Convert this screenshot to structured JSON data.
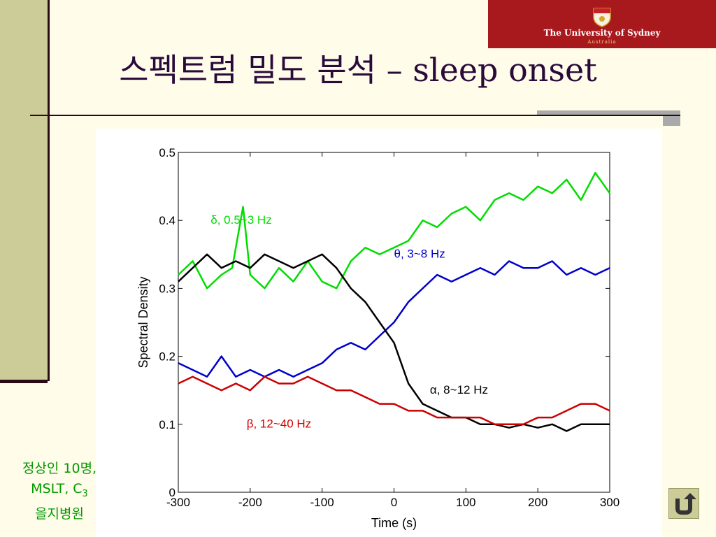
{
  "slide": {
    "title": "스펙트럼 밀도 분석 – sleep onset",
    "note_line1": "정상인 10명,",
    "note_line2": "MSLT, C",
    "note_line2_sub": "3",
    "note_line3": "을지병원",
    "logo_name": "The University of Sydney",
    "logo_sub": "Australia",
    "colors": {
      "background": "#fffdea",
      "accent": "#cccc99",
      "title": "#2a0a3a",
      "note": "#009900",
      "logo": "#a8191e"
    }
  },
  "chart_data": {
    "type": "line",
    "title": "",
    "xlabel": "Time (s)",
    "ylabel": "Spectral Density",
    "xlim": [
      -300,
      300
    ],
    "ylim": [
      0,
      0.5
    ],
    "xticks": [
      -300,
      -200,
      -100,
      0,
      100,
      200,
      300
    ],
    "yticks": [
      0,
      0.1,
      0.2,
      0.3,
      0.4,
      0.5
    ],
    "xtick_labels": [
      "-300",
      "-200",
      "-100",
      "0",
      "100",
      "200",
      "300"
    ],
    "ytick_labels": [
      "0",
      "0.1",
      "0.2",
      "0.3",
      "0.4",
      "0.5"
    ],
    "grid": false,
    "series": [
      {
        "name": "δ, 0.5~3 Hz",
        "color": "#00dd00",
        "x": [
          -300,
          -280,
          -260,
          -240,
          -225,
          -210,
          -200,
          -180,
          -160,
          -140,
          -120,
          -100,
          -80,
          -60,
          -40,
          -20,
          0,
          20,
          40,
          60,
          80,
          100,
          120,
          140,
          160,
          180,
          200,
          220,
          240,
          260,
          280,
          300
        ],
        "y": [
          0.32,
          0.34,
          0.3,
          0.32,
          0.33,
          0.42,
          0.32,
          0.3,
          0.33,
          0.31,
          0.34,
          0.31,
          0.3,
          0.34,
          0.36,
          0.35,
          0.36,
          0.37,
          0.4,
          0.39,
          0.41,
          0.42,
          0.4,
          0.43,
          0.44,
          0.43,
          0.45,
          0.44,
          0.46,
          0.43,
          0.47,
          0.44
        ]
      },
      {
        "name": "θ, 3~8 Hz",
        "color": "#0000cc",
        "x": [
          -300,
          -280,
          -260,
          -240,
          -220,
          -200,
          -180,
          -160,
          -140,
          -120,
          -100,
          -80,
          -60,
          -40,
          -20,
          0,
          20,
          40,
          60,
          80,
          100,
          120,
          140,
          160,
          180,
          200,
          220,
          240,
          260,
          280,
          300
        ],
        "y": [
          0.19,
          0.18,
          0.17,
          0.2,
          0.17,
          0.18,
          0.17,
          0.18,
          0.17,
          0.18,
          0.19,
          0.21,
          0.22,
          0.21,
          0.23,
          0.25,
          0.28,
          0.3,
          0.32,
          0.31,
          0.32,
          0.33,
          0.32,
          0.34,
          0.33,
          0.33,
          0.34,
          0.32,
          0.33,
          0.32,
          0.33
        ]
      },
      {
        "name": "α, 8~12 Hz",
        "color": "#000000",
        "x": [
          -300,
          -280,
          -260,
          -240,
          -220,
          -200,
          -180,
          -160,
          -140,
          -120,
          -100,
          -80,
          -60,
          -40,
          -20,
          0,
          20,
          40,
          60,
          80,
          100,
          120,
          140,
          160,
          180,
          200,
          220,
          240,
          260,
          280,
          300
        ],
        "y": [
          0.31,
          0.33,
          0.35,
          0.33,
          0.34,
          0.33,
          0.35,
          0.34,
          0.33,
          0.34,
          0.35,
          0.33,
          0.3,
          0.28,
          0.25,
          0.22,
          0.16,
          0.13,
          0.12,
          0.11,
          0.11,
          0.1,
          0.1,
          0.095,
          0.1,
          0.095,
          0.1,
          0.09,
          0.1,
          0.1,
          0.1
        ]
      },
      {
        "name": "β, 12~40 Hz",
        "color": "#cc0000",
        "x": [
          -300,
          -280,
          -260,
          -240,
          -220,
          -200,
          -180,
          -160,
          -140,
          -120,
          -100,
          -80,
          -60,
          -40,
          -20,
          0,
          20,
          40,
          60,
          80,
          100,
          120,
          140,
          160,
          180,
          200,
          220,
          240,
          260,
          280,
          300
        ],
        "y": [
          0.16,
          0.17,
          0.16,
          0.15,
          0.16,
          0.15,
          0.17,
          0.16,
          0.16,
          0.17,
          0.16,
          0.15,
          0.15,
          0.14,
          0.13,
          0.13,
          0.12,
          0.12,
          0.11,
          0.11,
          0.11,
          0.11,
          0.1,
          0.1,
          0.1,
          0.11,
          0.11,
          0.12,
          0.13,
          0.13,
          0.12
        ]
      }
    ],
    "annotations": [
      {
        "text": "δ, 0.5~3 Hz",
        "x": -255,
        "y": 0.395,
        "color": "#00dd00"
      },
      {
        "text": "θ, 3~8 Hz",
        "x": 0,
        "y": 0.345,
        "color": "#0000cc"
      },
      {
        "text": "α, 8~12 Hz",
        "x": 50,
        "y": 0.145,
        "color": "#000000"
      },
      {
        "text": "β, 12~40 Hz",
        "x": -205,
        "y": 0.095,
        "color": "#cc0000"
      }
    ]
  }
}
